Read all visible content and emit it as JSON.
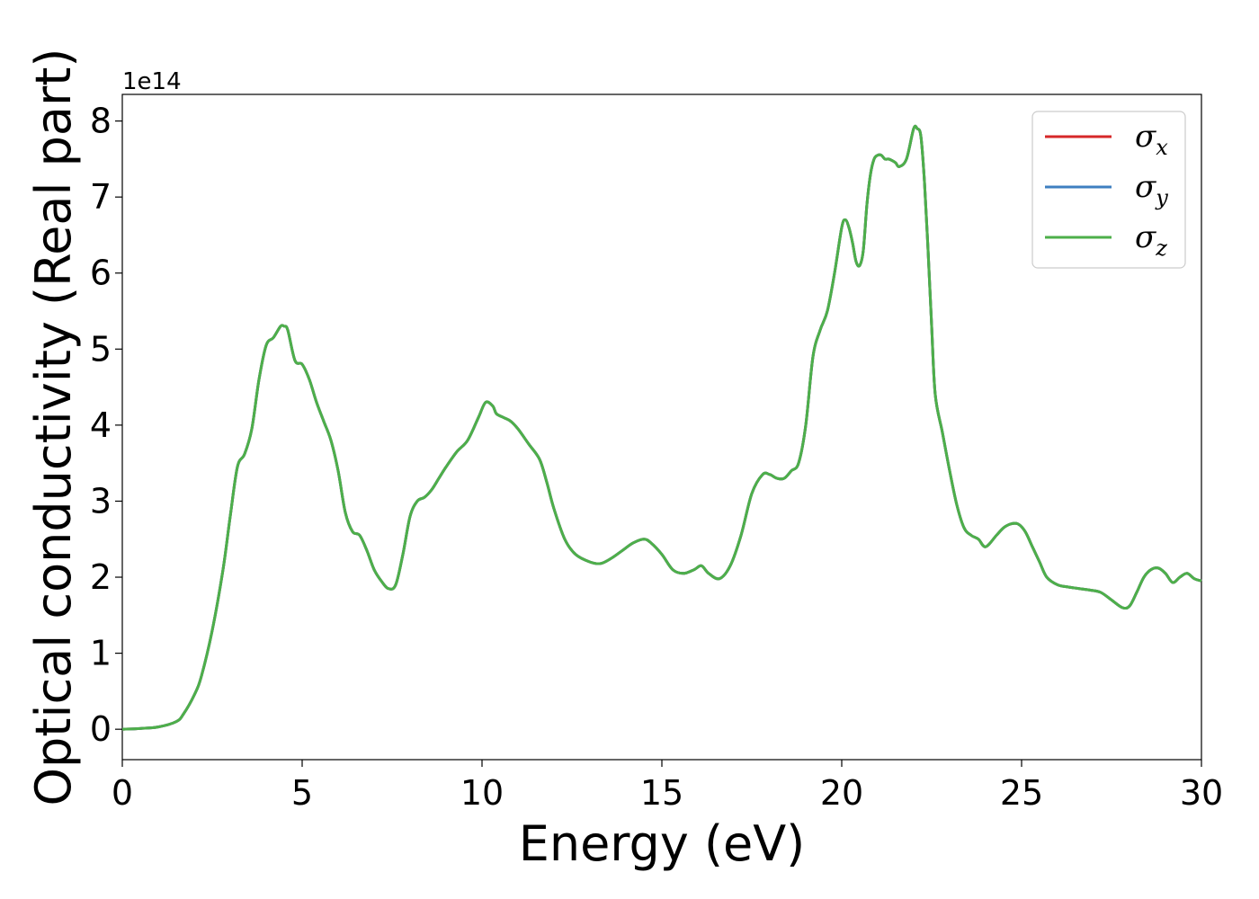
{
  "chart_data": {
    "type": "line",
    "xlabel": "Energy (eV)",
    "ylabel": "Optical conductivity (Real part)",
    "y_offset_text": "1e14",
    "y_scale": 100000000000000.0,
    "xlim": [
      0,
      30
    ],
    "ylim": [
      -0.4,
      8.35
    ],
    "x_ticks": [
      0,
      5,
      10,
      15,
      20,
      25,
      30
    ],
    "x_tick_labels": [
      "0",
      "5",
      "10",
      "15",
      "20",
      "25",
      "30"
    ],
    "y_ticks": [
      0,
      1,
      2,
      3,
      4,
      5,
      6,
      7,
      8
    ],
    "y_tick_labels": [
      "0",
      "1",
      "2",
      "3",
      "4",
      "5",
      "6",
      "7",
      "8"
    ],
    "grid": false,
    "legend_position": "top-right",
    "series": [
      {
        "name": "σ",
        "subscript": "x",
        "color": "#d62728"
      },
      {
        "name": "σ",
        "subscript": "y",
        "color": "#3e7fc0"
      },
      {
        "name": "σ",
        "subscript": "z",
        "color": "#4daf4a"
      }
    ],
    "x": [
      0,
      0.5,
      1.0,
      1.5,
      1.7,
      2.0,
      2.2,
      2.5,
      2.8,
      3.0,
      3.2,
      3.4,
      3.6,
      3.8,
      4.0,
      4.2,
      4.4,
      4.5,
      4.6,
      4.8,
      5.0,
      5.2,
      5.4,
      5.6,
      5.8,
      6.0,
      6.2,
      6.4,
      6.6,
      6.8,
      7.0,
      7.2,
      7.4,
      7.6,
      7.8,
      8.0,
      8.2,
      8.4,
      8.6,
      8.8,
      9.0,
      9.3,
      9.6,
      9.9,
      10.1,
      10.3,
      10.4,
      10.6,
      10.8,
      11.0,
      11.3,
      11.6,
      11.8,
      12.0,
      12.3,
      12.6,
      13.0,
      13.3,
      13.6,
      13.9,
      14.2,
      14.5,
      14.7,
      15.0,
      15.3,
      15.6,
      15.9,
      16.1,
      16.3,
      16.6,
      16.9,
      17.2,
      17.5,
      17.8,
      18.0,
      18.2,
      18.4,
      18.6,
      18.8,
      19.0,
      19.2,
      19.4,
      19.6,
      19.8,
      20.0,
      20.1,
      20.2,
      20.3,
      20.4,
      20.5,
      20.6,
      20.7,
      20.8,
      20.9,
      21.0,
      21.1,
      21.2,
      21.3,
      21.4,
      21.5,
      21.6,
      21.8,
      22.0,
      22.1,
      22.2,
      22.3,
      22.4,
      22.5,
      22.6,
      22.8,
      23.0,
      23.2,
      23.4,
      23.6,
      23.8,
      24.0,
      24.3,
      24.5,
      24.7,
      24.9,
      25.1,
      25.3,
      25.5,
      25.7,
      26.0,
      26.3,
      26.6,
      26.9,
      27.2,
      27.5,
      27.8,
      28.0,
      28.2,
      28.4,
      28.6,
      28.8,
      29.0,
      29.2,
      29.4,
      29.6,
      29.8,
      30.0
    ],
    "y": [
      0.0,
      0.01,
      0.03,
      0.1,
      0.2,
      0.45,
      0.7,
      1.3,
      2.1,
      2.8,
      3.45,
      3.62,
      3.95,
      4.6,
      5.05,
      5.15,
      5.3,
      5.3,
      5.25,
      4.85,
      4.8,
      4.6,
      4.3,
      4.05,
      3.8,
      3.4,
      2.85,
      2.6,
      2.55,
      2.35,
      2.1,
      1.95,
      1.85,
      1.9,
      2.3,
      2.8,
      3.0,
      3.05,
      3.15,
      3.3,
      3.45,
      3.65,
      3.8,
      4.1,
      4.3,
      4.25,
      4.15,
      4.1,
      4.05,
      3.95,
      3.75,
      3.55,
      3.25,
      2.9,
      2.5,
      2.3,
      2.2,
      2.18,
      2.25,
      2.35,
      2.45,
      2.5,
      2.45,
      2.3,
      2.1,
      2.05,
      2.1,
      2.15,
      2.05,
      1.98,
      2.15,
      2.55,
      3.1,
      3.35,
      3.35,
      3.3,
      3.3,
      3.4,
      3.5,
      4.0,
      4.9,
      5.25,
      5.5,
      6.0,
      6.6,
      6.7,
      6.6,
      6.4,
      6.15,
      6.1,
      6.3,
      6.9,
      7.3,
      7.5,
      7.55,
      7.55,
      7.5,
      7.5,
      7.48,
      7.45,
      7.4,
      7.5,
      7.9,
      7.9,
      7.8,
      7.2,
      6.3,
      5.3,
      4.4,
      3.9,
      3.4,
      2.95,
      2.65,
      2.55,
      2.5,
      2.4,
      2.55,
      2.65,
      2.7,
      2.7,
      2.6,
      2.4,
      2.2,
      2.0,
      1.9,
      1.87,
      1.85,
      1.83,
      1.8,
      1.7,
      1.6,
      1.62,
      1.8,
      2.0,
      2.1,
      2.12,
      2.05,
      1.93,
      2.0,
      2.05,
      1.98,
      1.95
    ]
  }
}
